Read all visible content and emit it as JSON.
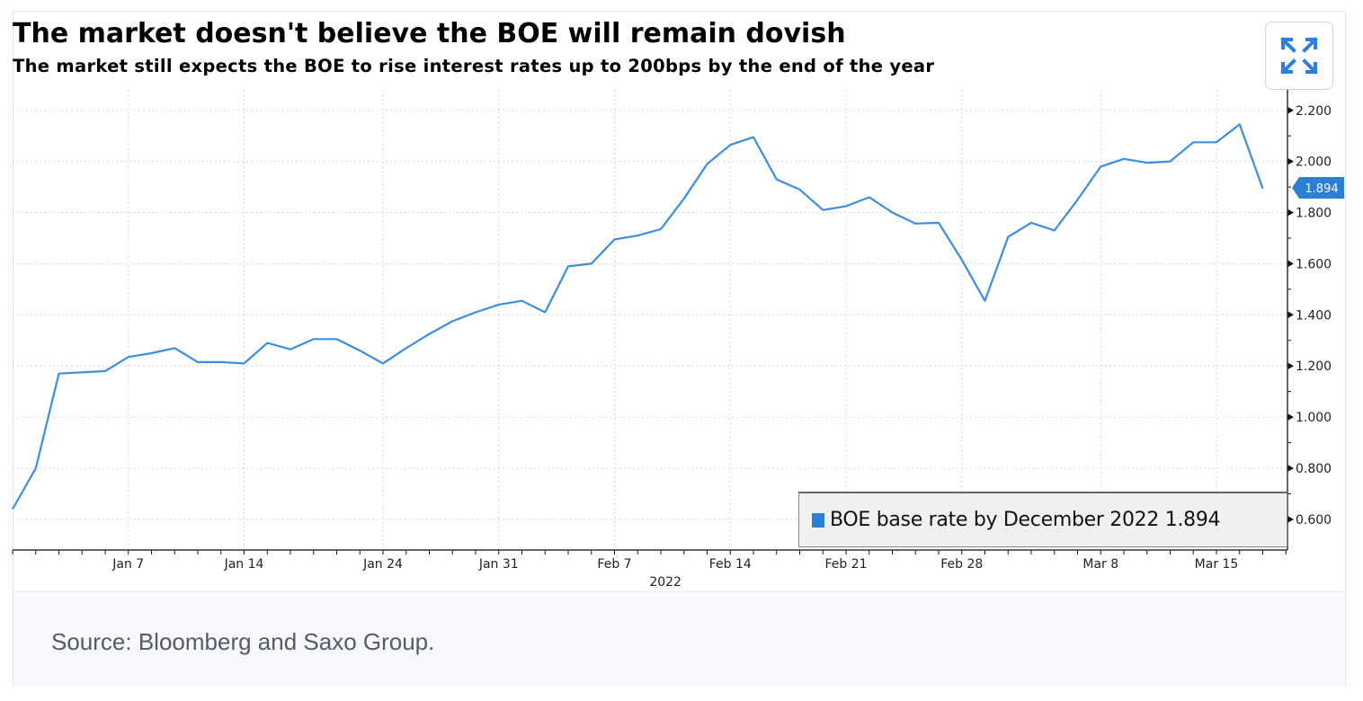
{
  "title": "The market doesn't believe the BOE will remain dovish",
  "subtitle": "The market still expects the BOE to rise interest rates up to 200bps by the end of the year",
  "expand_button": {
    "icon": "expand-icon"
  },
  "footer": {
    "source": "Source: Bloomberg and Saxo Group."
  },
  "colors": {
    "line": "#3a8ee0",
    "accent": "#2b7fd4",
    "grid": "#d8d8d8"
  },
  "chart_data": {
    "type": "line",
    "title": "The market doesn't believe the BOE will remain dovish",
    "subtitle": "The market still expects the BOE to rise interest rates up to 200bps by the end of the year",
    "xlabel": "2022",
    "ylabel": "",
    "ylim": [
      0.48,
      2.28
    ],
    "y_ticks": [
      "0.600",
      "0.800",
      "1.000",
      "1.200",
      "1.400",
      "1.600",
      "1.800",
      "2.000",
      "2.200"
    ],
    "y_tick_values": [
      0.6,
      0.8,
      1.0,
      1.2,
      1.4,
      1.6,
      1.8,
      2.0,
      2.2
    ],
    "x_tick_labels": [
      {
        "label": "Jan 7",
        "index": 5
      },
      {
        "label": "Jan 14",
        "index": 10
      },
      {
        "label": "Jan 24",
        "index": 16
      },
      {
        "label": "Jan 31",
        "index": 21
      },
      {
        "label": "Feb 7",
        "index": 26
      },
      {
        "label": "Feb 14",
        "index": 31
      },
      {
        "label": "Feb 21",
        "index": 36
      },
      {
        "label": "Feb 28",
        "index": 41
      },
      {
        "label": "Mar 8",
        "index": 47
      },
      {
        "label": "Mar 15",
        "index": 52
      }
    ],
    "year_label": "2022",
    "grid": true,
    "legend_position": "bottom-right",
    "last_value_label": "1.894",
    "series": [
      {
        "name": "BOE base rate by December 2022",
        "legend_label": "BOE base rate by December 2022 1.894",
        "values": [
          0.64,
          0.8,
          1.17,
          1.175,
          1.18,
          1.235,
          1.25,
          1.27,
          1.215,
          1.215,
          1.21,
          1.29,
          1.265,
          1.305,
          1.305,
          1.26,
          1.21,
          1.27,
          1.325,
          1.375,
          1.41,
          1.44,
          1.455,
          1.41,
          1.59,
          1.6,
          1.695,
          1.71,
          1.735,
          1.855,
          1.99,
          2.065,
          2.095,
          1.93,
          1.89,
          1.81,
          1.825,
          1.86,
          1.8,
          1.757,
          1.76,
          1.615,
          1.455,
          1.705,
          1.76,
          1.73,
          1.85,
          1.98,
          2.01,
          1.995,
          2.0,
          2.075,
          2.075,
          2.145,
          1.894
        ]
      }
    ]
  }
}
